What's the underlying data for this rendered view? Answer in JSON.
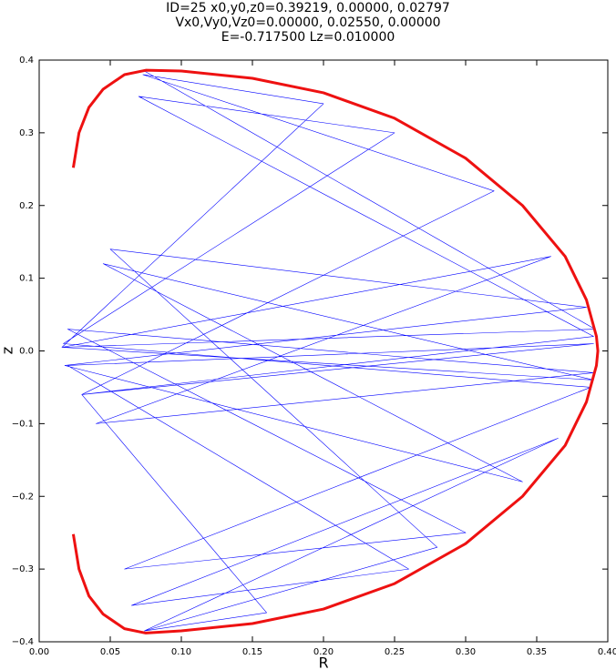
{
  "chart_data": {
    "type": "line",
    "title": [
      "ID=25      x0,y0,z0=0.39219, 0.00000, 0.02797",
      "Vx0,Vy0,Vz0=0.00000, 0.02550, 0.00000",
      "E=-0.717500    Lz=0.010000"
    ],
    "xlabel": "R",
    "ylabel": "z",
    "xlim": [
      0,
      0.4
    ],
    "ylim": [
      -0.4,
      0.4
    ],
    "xticks": [
      {
        "value": 0,
        "label": "0.00"
      },
      0.05,
      {
        "value": 0.1,
        "label": "0.10"
      },
      0.15,
      {
        "value": 0.2,
        "label": "0.20"
      },
      0.25,
      {
        "value": 0.3,
        "label": "0.30"
      },
      0.35,
      {
        "value": 0.4,
        "label": "0.40"
      }
    ],
    "yticks": [
      {
        "value": -0.4,
        "label": "−0.4"
      },
      {
        "value": -0.3,
        "label": "−0.3"
      },
      {
        "value": -0.2,
        "label": "−0.2"
      },
      {
        "value": -0.1,
        "label": "−0.1"
      },
      {
        "value": 0,
        "label": "0.0"
      },
      0.1,
      0.2,
      0.3,
      0.4
    ],
    "series": [
      {
        "color": "#0000ff",
        "x": [
          0.074,
          0.391,
          0.016,
          0.36,
          0.04,
          0.39,
          0.02,
          0.3,
          0.06,
          0.388,
          0.017,
          0.25,
          0.07,
          0.39,
          0.03,
          0.16,
          0.074,
          0.28,
          0.05,
          0.385,
          0.018,
          0.34,
          0.045,
          0.39,
          0.016,
          0.2,
          0.073,
          0.32,
          0.03,
          0.39,
          0.02,
          0.26,
          0.065,
          0.365,
          0.074
        ],
        "values": [
          0.385,
          0.03,
          0.005,
          0.13,
          -0.1,
          -0.03,
          0.03,
          -0.25,
          -0.3,
          -0.05,
          0.01,
          0.3,
          0.35,
          0.02,
          -0.06,
          -0.36,
          -0.385,
          -0.27,
          0.14,
          0.06,
          -0.02,
          -0.18,
          0.12,
          -0.04,
          0.005,
          0.34,
          0.38,
          0.22,
          -0.06,
          0.01,
          -0.02,
          -0.3,
          -0.35,
          -0.12,
          -0.385
        ]
      },
      {
        "color": "#ee1111",
        "x": [
          0.024,
          0.028,
          0.035,
          0.045,
          0.06,
          0.075,
          0.1,
          0.15,
          0.2,
          0.25,
          0.3,
          0.34,
          0.37,
          0.385,
          0.392,
          0.393,
          0.392,
          0.385,
          0.37,
          0.34,
          0.3,
          0.25,
          0.2,
          0.15,
          0.1,
          0.075,
          0.06,
          0.045,
          0.035,
          0.028,
          0.024
        ],
        "values": [
          0.252,
          0.3,
          0.335,
          0.36,
          0.38,
          0.386,
          0.385,
          0.375,
          0.355,
          0.32,
          0.265,
          0.2,
          0.13,
          0.07,
          0.02,
          0,
          -0.02,
          -0.07,
          -0.13,
          -0.2,
          -0.265,
          -0.32,
          -0.355,
          -0.375,
          -0.385,
          -0.388,
          -0.382,
          -0.362,
          -0.337,
          -0.3,
          -0.252
        ]
      }
    ]
  }
}
